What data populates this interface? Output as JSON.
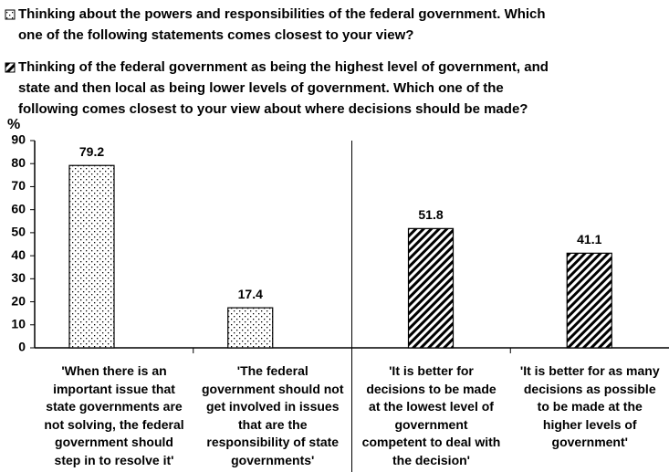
{
  "chart_data": {
    "type": "bar",
    "y_label": "%",
    "categories": [
      "'When there is an\nimportant issue that\nstate governments are\nnot solving, the federal\ngovernment should\nstep in to resolve it'",
      "'The federal\ngovernment should not\nget involved in issues\nthat are the\nresponsibility of state\ngovernments'",
      "'It is better for\ndecisions to be made\nat the lowest level of\ngovernment\ncompetent to deal with\nthe decision'",
      "'It is better for as many\ndecisions as possible\nto be made at the\nhigher levels of\ngovernment'"
    ],
    "series": [
      {
        "name": "Thinking about the powers and responsibilities of the federal government.  Which\none of the following statements comes closest to your view?",
        "color": "#000000",
        "pattern": "dots",
        "values": [
          79.2,
          17.4,
          null,
          null
        ]
      },
      {
        "name": "Thinking of the federal government as being the highest level of government, and\nstate and then local as being lower levels of government.  Which one of the\nfollowing comes closest to your view about where decisions should be made?",
        "color": "#000000",
        "pattern": "stripes",
        "values": [
          null,
          null,
          51.8,
          41.1
        ]
      }
    ],
    "ylim": [
      0,
      90
    ],
    "yticks": [
      0,
      10,
      20,
      30,
      40,
      50,
      60,
      70,
      80,
      90
    ]
  }
}
